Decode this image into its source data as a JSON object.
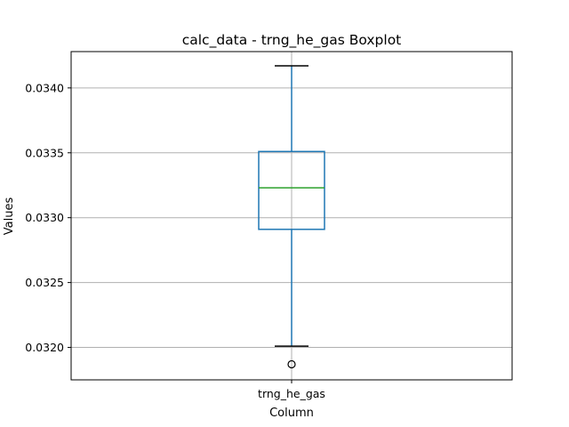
{
  "chart_data": {
    "type": "boxplot",
    "title": "calc_data - trng_he_gas Boxplot",
    "xlabel": "Column",
    "ylabel": "Values",
    "categories": [
      "trng_he_gas"
    ],
    "ylim": [
      0.03175,
      0.03428
    ],
    "yticks": [
      0.032,
      0.0325,
      0.033,
      0.0335,
      0.034
    ],
    "ytick_labels": [
      "0.0320",
      "0.0325",
      "0.0330",
      "0.0335",
      "0.0340"
    ],
    "grid": true,
    "boxes": [
      {
        "category": "trng_he_gas",
        "whisker_low": 0.03201,
        "q1": 0.03291,
        "median": 0.03323,
        "q3": 0.03351,
        "whisker_high": 0.03417,
        "outliers": [
          0.03187
        ]
      }
    ],
    "colors": {
      "box": "#1f77b4",
      "median": "#2ca02c",
      "grid": "#b0b0b0",
      "axes": "#000000"
    }
  }
}
